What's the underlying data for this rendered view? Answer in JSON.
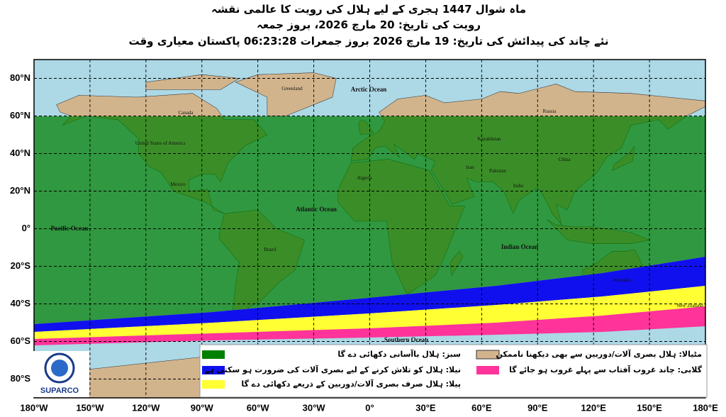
{
  "header": {
    "lines": [
      "ماہ شوال 1447 ہجری کے لیے ہلال کی رویت کا عالمی نقشہ",
      "رویت کی تاریخ: 20 مارچ 2026، بروز جمعہ",
      "نئے چاند کی پیدائش کی تاریخ: 19 مارچ 2026 بروز جمعرات 06:23:28 پاکستان معیاری وقت"
    ]
  },
  "map": {
    "lat_ticks": [
      {
        "value": 80,
        "label": "80°N"
      },
      {
        "value": 60,
        "label": "60°N"
      },
      {
        "value": 40,
        "label": "40°N"
      },
      {
        "value": 20,
        "label": "20°N"
      },
      {
        "value": 0,
        "label": "0°"
      },
      {
        "value": -20,
        "label": "20°S"
      },
      {
        "value": -40,
        "label": "40°S"
      },
      {
        "value": -60,
        "label": "60°S"
      },
      {
        "value": -80,
        "label": "80°S"
      }
    ],
    "lon_ticks": [
      {
        "value": -180,
        "label": "180°W"
      },
      {
        "value": -150,
        "label": "150°W"
      },
      {
        "value": -120,
        "label": "120°W"
      },
      {
        "value": -90,
        "label": "90°W"
      },
      {
        "value": -60,
        "label": "60°W"
      },
      {
        "value": -30,
        "label": "30°W"
      },
      {
        "value": 0,
        "label": "0°"
      },
      {
        "value": 30,
        "label": "30°E"
      },
      {
        "value": 60,
        "label": "60°E"
      },
      {
        "value": 90,
        "label": "90°E"
      },
      {
        "value": 120,
        "label": "120°E"
      },
      {
        "value": 150,
        "label": "150°E"
      },
      {
        "value": 180,
        "label": "180°E"
      }
    ],
    "oceans": [
      "Arctic Ocean",
      "Atlantic Ocean",
      "Pacific Ocean",
      "Indian Ocean",
      "Southern Ocean"
    ],
    "places": [
      "Greenland",
      "Canada",
      "United States of America",
      "Mexico",
      "Brazil",
      "Russia",
      "China",
      "India",
      "Pakistan",
      "Algeria",
      "Australia",
      "New Zealand",
      "Kazakhstan",
      "Iran"
    ]
  },
  "legend": {
    "items": [
      "سبز: ہلال باآسانی دکھائی دے گا",
      "نیلا: ہلال کو تلاش کرنے کے لیے بصری آلات کی ضرورت ہو سکتی ہے",
      "پیلا: ہلال صرف بصری آلات/دوربین کے ذریعے دکھائی دے گا",
      "مٹیالا: ہلال بصری آلات/دوربین سے بھی دیکھنا ناممکن",
      "گلابی: چاند غروب آفتاب سے پہلے غروب ہو جائے گا"
    ]
  },
  "logo": {
    "text": "SUPARCO"
  }
}
